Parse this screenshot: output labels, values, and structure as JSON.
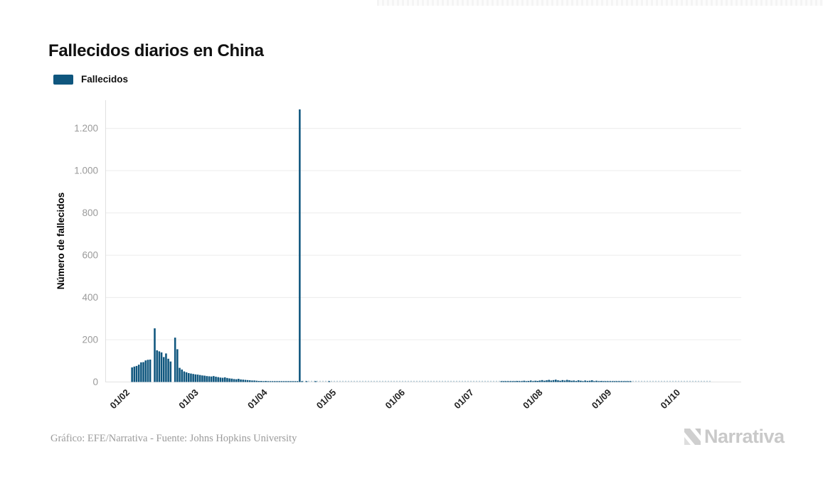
{
  "header": {
    "title": "Fallecidos diarios en China"
  },
  "legend": {
    "items": [
      {
        "label": "Fallecidos",
        "color": "#0f567e"
      }
    ]
  },
  "chart_data": {
    "type": "bar",
    "title": "Fallecidos diarios en China",
    "xlabel": "",
    "ylabel": "Número de fallecidos",
    "ylim": [
      0,
      1300
    ],
    "grid": true,
    "legend_position": "top-left",
    "yticks": [
      0,
      200,
      400,
      600,
      800,
      1000,
      1200
    ],
    "ytick_labels": [
      "0",
      "200",
      "400",
      "600",
      "800",
      "1.000",
      "1.200"
    ],
    "xtick_labels": [
      "01/02",
      "01/03",
      "01/04",
      "01/05",
      "01/06",
      "01/07",
      "01/08",
      "01/09",
      "01/10"
    ],
    "series": [
      {
        "name": "Fallecidos",
        "color": "#0f567e",
        "start": "01/02",
        "frequency": "daily",
        "values": [
          0,
          0,
          69,
          73,
          76,
          82,
          93,
          94,
          102,
          105,
          106,
          0,
          254,
          150,
          145,
          140,
          118,
          135,
          110,
          97,
          0,
          210,
          155,
          67,
          59,
          50,
          46,
          42,
          40,
          38,
          36,
          35,
          33,
          31,
          30,
          28,
          27,
          26,
          28,
          25,
          23,
          21,
          20,
          22,
          19,
          17,
          16,
          14,
          13,
          15,
          12,
          11,
          10,
          9,
          8,
          7,
          7,
          6,
          5,
          5,
          4,
          5,
          3,
          4,
          2,
          3,
          2,
          2,
          3,
          1,
          2,
          1,
          1,
          1,
          2,
          1,
          1290,
          1,
          0,
          1,
          0,
          0,
          0,
          1,
          0,
          0,
          0,
          0,
          0,
          1,
          0,
          0,
          0,
          0,
          0,
          0,
          0,
          0,
          0,
          0,
          0,
          0,
          0,
          0,
          0,
          0,
          0,
          0,
          0,
          0,
          0,
          0,
          0,
          0,
          0,
          0,
          0,
          0,
          0,
          0,
          0,
          0,
          0,
          0,
          0,
          0,
          0,
          0,
          0,
          0,
          0,
          0,
          0,
          0,
          0,
          0,
          0,
          0,
          0,
          0,
          0,
          0,
          0,
          0,
          0,
          0,
          0,
          0,
          0,
          0,
          0,
          0,
          0,
          0,
          0,
          0,
          0,
          0,
          0,
          0,
          0,
          0,
          0,
          0,
          0,
          2,
          1,
          3,
          2,
          3,
          4,
          2,
          5,
          3,
          4,
          6,
          3,
          5,
          7,
          4,
          6,
          5,
          7,
          9,
          6,
          8,
          10,
          7,
          9,
          11,
          8,
          6,
          9,
          7,
          10,
          8,
          6,
          7,
          5,
          8,
          6,
          4,
          7,
          5,
          6,
          8,
          4,
          6,
          3,
          5,
          4,
          3,
          4,
          3,
          2,
          4,
          2,
          3,
          1,
          2,
          3,
          1,
          2,
          0,
          0,
          0,
          0,
          0,
          0,
          0,
          0,
          0,
          0,
          0,
          0,
          0,
          0,
          0,
          0,
          0,
          0,
          0,
          0,
          0,
          0,
          0,
          0,
          0,
          0,
          0,
          0,
          0,
          0,
          0,
          0,
          0,
          0,
          0
        ]
      }
    ],
    "notable_points": [
      {
        "date": "13/02",
        "value": 254
      },
      {
        "date": "22/02",
        "value": 210
      },
      {
        "date": "17/04",
        "value": 1290
      }
    ]
  },
  "footer": {
    "credit": "Gráfico: EFE/Narrativa - Fuente: Johns Hopkins University",
    "brand": "Narrativa"
  }
}
